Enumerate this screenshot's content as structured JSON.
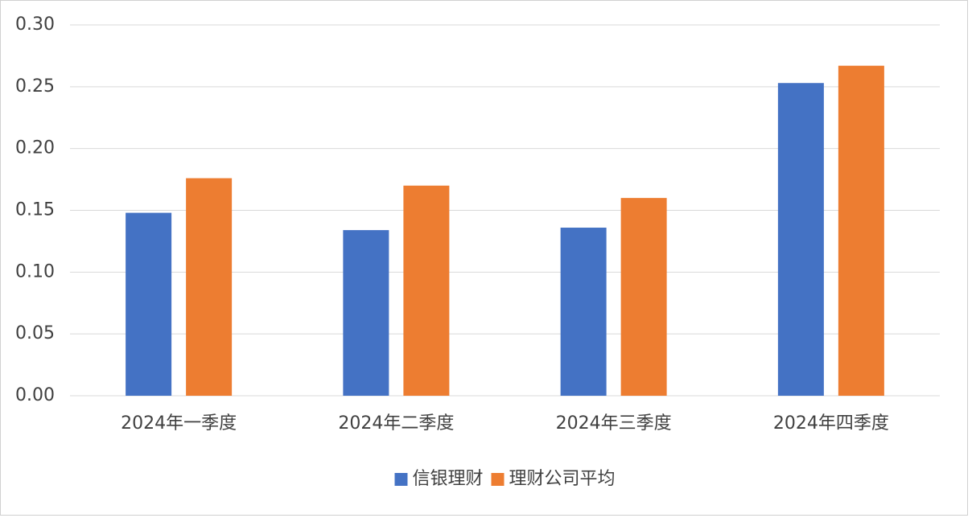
{
  "chart_data": {
    "type": "bar",
    "categories": [
      "2024年一季度",
      "2024年二季度",
      "2024年三季度",
      "2024年四季度"
    ],
    "series": [
      {
        "name": "信银理财",
        "color": "#4472c4",
        "values": [
          0.148,
          0.134,
          0.136,
          0.253
        ]
      },
      {
        "name": "理财公司平均",
        "color": "#ed7d31",
        "values": [
          0.176,
          0.17,
          0.16,
          0.267
        ]
      }
    ],
    "ylim": [
      0,
      0.3
    ],
    "yticks": [
      {
        "value": 0,
        "label": "0.00"
      },
      {
        "value": 0.05,
        "label": "0.05"
      },
      {
        "value": 0.1,
        "label": "0.10"
      },
      {
        "value": 0.15,
        "label": "0.15"
      },
      {
        "value": 0.2,
        "label": "0.20"
      },
      {
        "value": 0.25,
        "label": "0.25"
      },
      {
        "value": 0.3,
        "label": "0.30"
      }
    ],
    "grid": true,
    "legend": "bottom"
  }
}
